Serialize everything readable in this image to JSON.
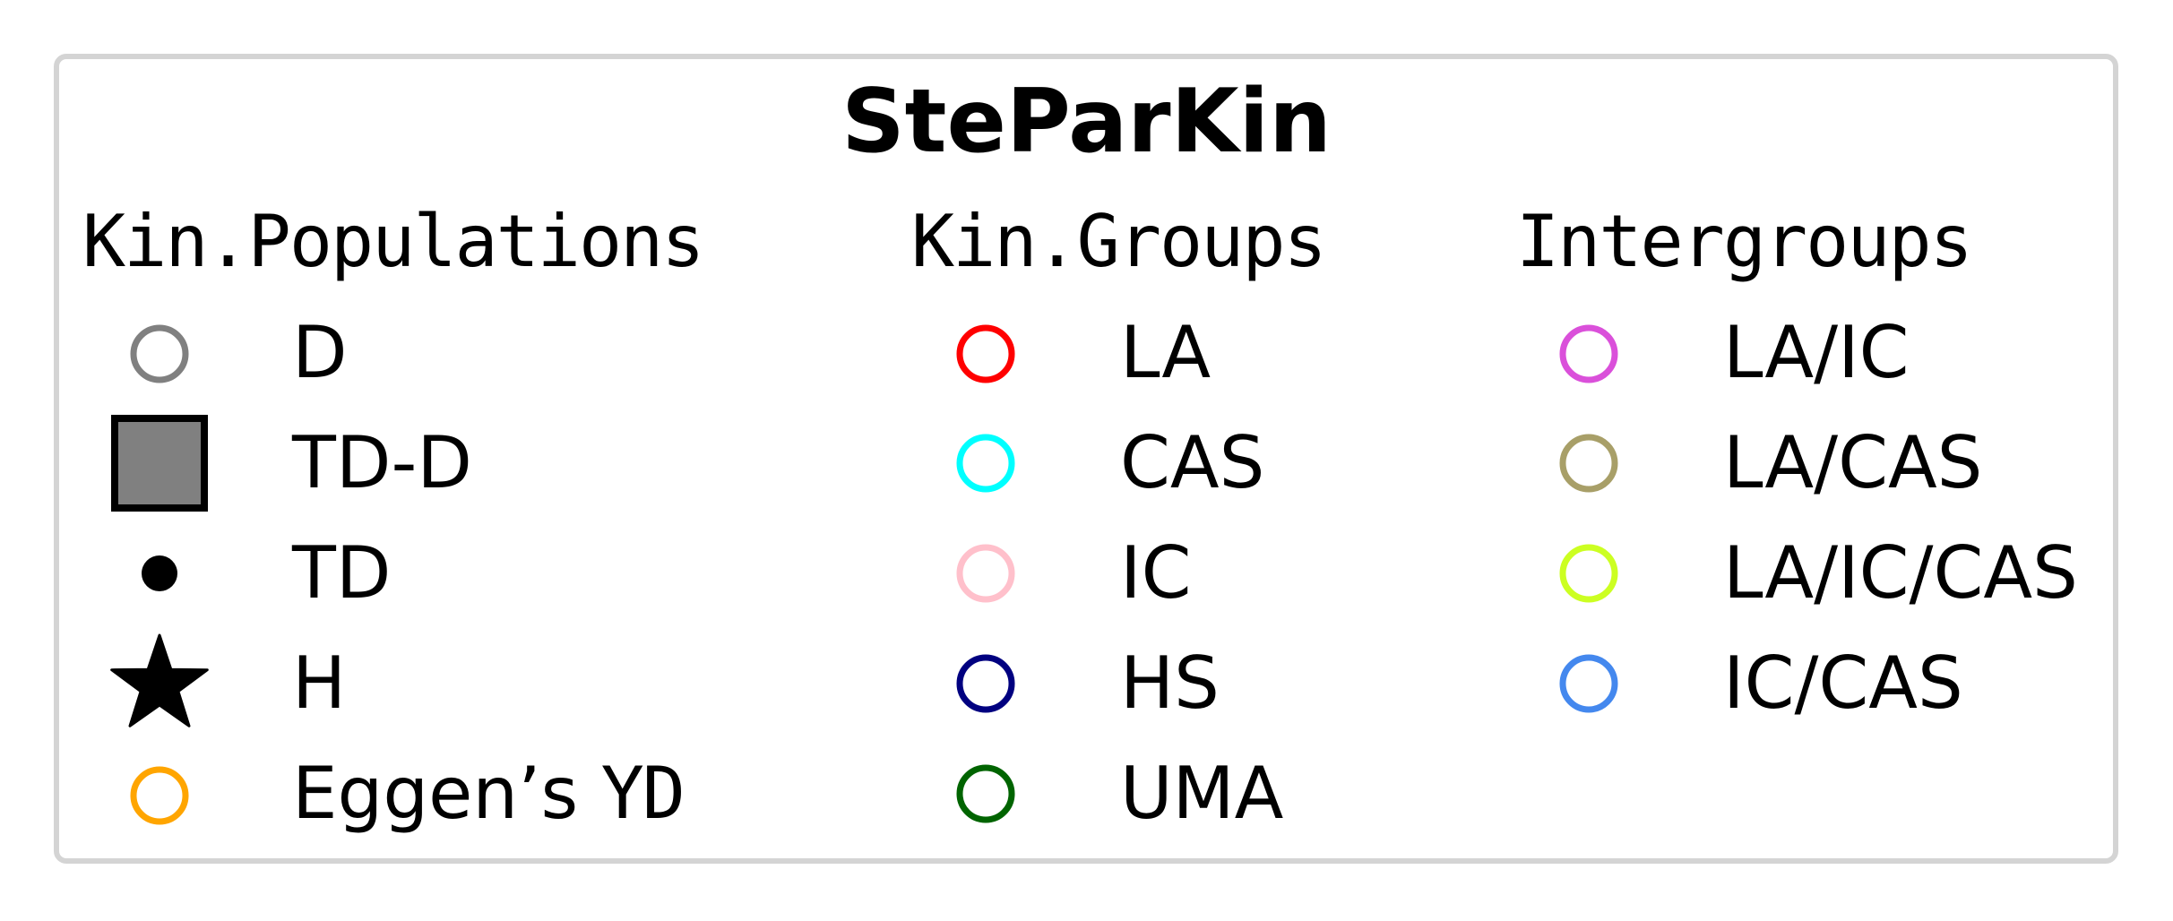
{
  "legend": {
    "title": "SteParKin",
    "columns": [
      {
        "header": "Kin.Populations",
        "entries": [
          {
            "label": "D",
            "marker": "open-circle",
            "color": "#808080"
          },
          {
            "label": "TD-D",
            "marker": "filled-square",
            "color": "#808080"
          },
          {
            "label": "TD",
            "marker": "filled-dot",
            "color": "#000000"
          },
          {
            "label": "H",
            "marker": "filled-star",
            "color": "#000000"
          },
          {
            "label_prefix": "Eggen’s",
            "label_suffix": "YD",
            "marker": "open-circle",
            "color": "#FFA500"
          }
        ]
      },
      {
        "header": "Kin.Groups",
        "entries": [
          {
            "label": "LA",
            "marker": "open-circle",
            "color": "#FF0000"
          },
          {
            "label": "CAS",
            "marker": "open-circle",
            "color": "#00FFFF"
          },
          {
            "label": "IC",
            "marker": "open-circle",
            "color": "#FFC0CB"
          },
          {
            "label": "HS",
            "marker": "open-circle",
            "color": "#000080"
          },
          {
            "label": "UMA",
            "marker": "open-circle",
            "color": "#006400"
          }
        ]
      },
      {
        "header": "Intergroups",
        "entries": [
          {
            "label": "LA/IC",
            "marker": "open-circle",
            "color": "#DA50DA"
          },
          {
            "label": "LA/CAS",
            "marker": "open-circle",
            "color": "#A89F68"
          },
          {
            "label": "LA/IC/CAS",
            "marker": "open-circle",
            "color": "#CCFF22"
          },
          {
            "label": "IC/CAS",
            "marker": "open-circle",
            "color": "#4488EE"
          }
        ]
      }
    ]
  }
}
